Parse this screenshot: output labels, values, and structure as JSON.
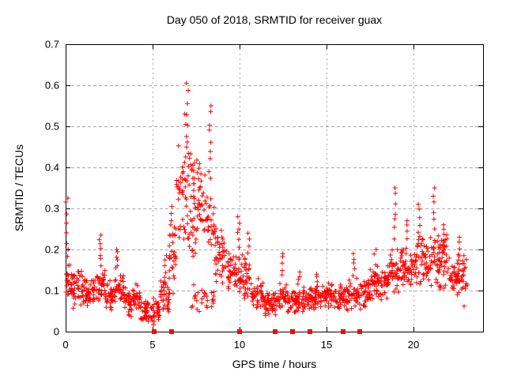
{
  "chart_data": {
    "type": "scatter",
    "title": "Day 050 of 2018, SRMTID for receiver guax",
    "xlabel": "GPS time / hours",
    "ylabel": "SRMTID / TECUs",
    "xlim": [
      0,
      24
    ],
    "ylim": [
      0,
      0.7
    ],
    "xticks": [
      0,
      5,
      10,
      15,
      20
    ],
    "yticks": [
      "0",
      "0.1",
      "0.2",
      "0.3",
      "0.4",
      "0.5",
      "0.6",
      "0.7"
    ],
    "grid": true,
    "legend": "none",
    "marker": "plus-cross",
    "marker_color": "#ff0000",
    "grid_color": "#a8a8a8",
    "border_color": "#000000",
    "event_squares_hours": [
      5.1,
      6.1,
      10.0,
      12.05,
      13.05,
      14.05,
      15.95,
      16.9
    ],
    "event_squares_value": 0,
    "scatter_bands": [
      {
        "t0": 0.0,
        "t1": 0.4,
        "lo": 0.07,
        "hi": 0.17,
        "n": 26
      },
      {
        "t0": 0.4,
        "t1": 1.0,
        "lo": 0.055,
        "hi": 0.155,
        "n": 40
      },
      {
        "t0": 1.0,
        "t1": 1.8,
        "lo": 0.05,
        "hi": 0.14,
        "n": 52
      },
      {
        "t0": 1.8,
        "t1": 2.3,
        "lo": 0.06,
        "hi": 0.165,
        "n": 33
      },
      {
        "t0": 2.3,
        "t1": 2.8,
        "lo": 0.05,
        "hi": 0.13,
        "n": 33
      },
      {
        "t0": 2.8,
        "t1": 3.4,
        "lo": 0.055,
        "hi": 0.155,
        "n": 39
      },
      {
        "t0": 3.4,
        "t1": 4.3,
        "lo": 0.035,
        "hi": 0.125,
        "n": 58
      },
      {
        "t0": 4.3,
        "t1": 5.4,
        "lo": 0.015,
        "hi": 0.085,
        "n": 70
      },
      {
        "t0": 5.4,
        "t1": 5.95,
        "lo": 0.04,
        "hi": 0.135,
        "n": 35
      },
      {
        "t0": 5.95,
        "t1": 6.35,
        "lo": 0.07,
        "hi": 0.28,
        "n": 28
      },
      {
        "t0": 6.35,
        "t1": 7.55,
        "lo": 0.27,
        "hi": 0.46,
        "n": 55
      },
      {
        "t0": 6.35,
        "t1": 7.55,
        "lo": 0.17,
        "hi": 0.29,
        "n": 28
      },
      {
        "t0": 7.55,
        "t1": 8.1,
        "lo": 0.21,
        "hi": 0.42,
        "n": 34
      },
      {
        "t0": 7.2,
        "t1": 8.6,
        "lo": 0.04,
        "hi": 0.12,
        "n": 28
      },
      {
        "t0": 8.1,
        "t1": 8.55,
        "lo": 0.19,
        "hi": 0.35,
        "n": 26
      },
      {
        "t0": 8.55,
        "t1": 9.3,
        "lo": 0.11,
        "hi": 0.27,
        "n": 46
      },
      {
        "t0": 9.3,
        "t1": 10.0,
        "lo": 0.09,
        "hi": 0.2,
        "n": 44
      },
      {
        "t0": 10.0,
        "t1": 10.7,
        "lo": 0.07,
        "hi": 0.2,
        "n": 44
      },
      {
        "t0": 10.7,
        "t1": 11.4,
        "lo": 0.05,
        "hi": 0.13,
        "n": 44
      },
      {
        "t0": 11.4,
        "t1": 12.3,
        "lo": 0.035,
        "hi": 0.105,
        "n": 56
      },
      {
        "t0": 12.3,
        "t1": 12.7,
        "lo": 0.045,
        "hi": 0.13,
        "n": 25
      },
      {
        "t0": 12.7,
        "t1": 13.8,
        "lo": 0.04,
        "hi": 0.11,
        "n": 68
      },
      {
        "t0": 13.8,
        "t1": 15.0,
        "lo": 0.045,
        "hi": 0.115,
        "n": 75
      },
      {
        "t0": 15.0,
        "t1": 16.3,
        "lo": 0.05,
        "hi": 0.12,
        "n": 82
      },
      {
        "t0": 16.3,
        "t1": 16.8,
        "lo": 0.055,
        "hi": 0.14,
        "n": 31
      },
      {
        "t0": 16.8,
        "t1": 17.5,
        "lo": 0.05,
        "hi": 0.135,
        "n": 44
      },
      {
        "t0": 17.5,
        "t1": 18.5,
        "lo": 0.065,
        "hi": 0.165,
        "n": 63
      },
      {
        "t0": 18.5,
        "t1": 19.3,
        "lo": 0.085,
        "hi": 0.205,
        "n": 50
      },
      {
        "t0": 19.3,
        "t1": 20.0,
        "lo": 0.095,
        "hi": 0.22,
        "n": 45
      },
      {
        "t0": 20.0,
        "t1": 20.6,
        "lo": 0.1,
        "hi": 0.25,
        "n": 38
      },
      {
        "t0": 20.6,
        "t1": 21.5,
        "lo": 0.1,
        "hi": 0.24,
        "n": 56
      },
      {
        "t0": 21.5,
        "t1": 22.1,
        "lo": 0.1,
        "hi": 0.25,
        "n": 38
      },
      {
        "t0": 22.1,
        "t1": 22.5,
        "lo": 0.08,
        "hi": 0.18,
        "n": 25
      },
      {
        "t0": 22.5,
        "t1": 23.1,
        "lo": 0.055,
        "hi": 0.2,
        "n": 38
      }
    ],
    "spikes": [
      {
        "t": 0.07,
        "base": 0.17,
        "top": 0.325,
        "n": 8
      },
      {
        "t": 2.0,
        "base": 0.16,
        "top": 0.235,
        "n": 7
      },
      {
        "t": 2.95,
        "base": 0.15,
        "top": 0.2,
        "n": 6
      },
      {
        "t": 5.75,
        "base": 0.12,
        "top": 0.185,
        "n": 5
      },
      {
        "t": 6.1,
        "base": 0.18,
        "top": 0.305,
        "n": 6
      },
      {
        "t": 6.9,
        "base": 0.44,
        "top": 0.53,
        "n": 4
      },
      {
        "t": 7.0,
        "base": 0.46,
        "top": 0.605,
        "n": 6
      },
      {
        "t": 8.3,
        "base": 0.36,
        "top": 0.55,
        "n": 9
      },
      {
        "t": 9.95,
        "base": 0.2,
        "top": 0.28,
        "n": 6
      },
      {
        "t": 10.5,
        "base": 0.19,
        "top": 0.24,
        "n": 4
      },
      {
        "t": 12.5,
        "base": 0.13,
        "top": 0.19,
        "n": 5
      },
      {
        "t": 13.4,
        "base": 0.11,
        "top": 0.145,
        "n": 4
      },
      {
        "t": 14.5,
        "base": 0.11,
        "top": 0.14,
        "n": 4
      },
      {
        "t": 16.55,
        "base": 0.13,
        "top": 0.19,
        "n": 5
      },
      {
        "t": 17.8,
        "base": 0.14,
        "top": 0.2,
        "n": 4
      },
      {
        "t": 18.9,
        "base": 0.22,
        "top": 0.35,
        "n": 7
      },
      {
        "t": 19.6,
        "base": 0.2,
        "top": 0.27,
        "n": 5
      },
      {
        "t": 20.3,
        "base": 0.22,
        "top": 0.31,
        "n": 6
      },
      {
        "t": 21.2,
        "base": 0.2,
        "top": 0.35,
        "n": 8
      },
      {
        "t": 21.8,
        "base": 0.2,
        "top": 0.26,
        "n": 5
      },
      {
        "t": 22.6,
        "base": 0.15,
        "top": 0.23,
        "n": 6
      }
    ]
  }
}
